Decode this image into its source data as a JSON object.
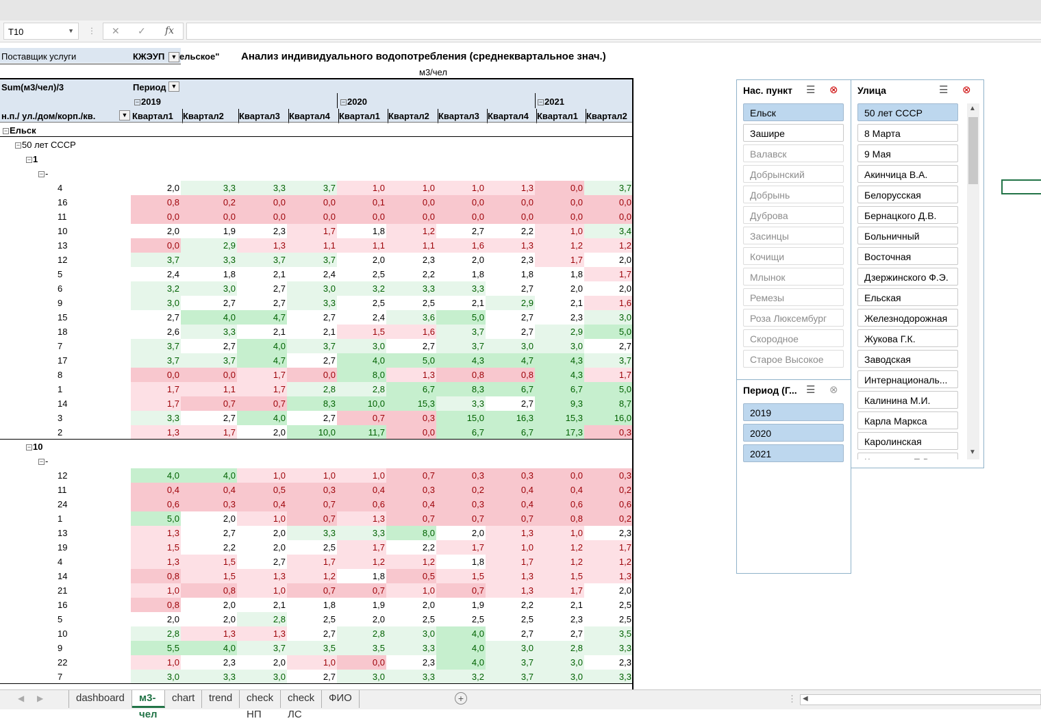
{
  "formula_bar": {
    "name_box": "T10",
    "fx_label": "fx",
    "formula": ""
  },
  "pivot": {
    "filter_label": "Поставщик услуги",
    "filter_value": "КЖЭУП",
    "filter_value_tail": "ельское\"",
    "title": "Анализ индивидуального водопотребления (среднеквартальное знач.)",
    "unit": "м3/чел",
    "measure": "Sum(м3/чел)/3",
    "column_field": "Период",
    "row_field": "н.п./ ул./дом/корп./кв.",
    "years": [
      "2019",
      "2020",
      "2021"
    ],
    "quarters": [
      "Квартал1",
      "Квартал2",
      "Квартал3",
      "Квартал4",
      "Квартал1",
      "Квартал2",
      "Квартал3",
      "Квартал4",
      "Квартал1",
      "Квартал2"
    ],
    "city": "Ельск",
    "street": "50 лет СССР",
    "groups": [
      {
        "house": "1",
        "korp": "-",
        "rows": [
          {
            "apt": "4",
            "values": [
              "2,0",
              "3,3",
              "3,3",
              "3,7",
              "1,0",
              "1,0",
              "1,0",
              "1,3",
              "0,0",
              "3,7"
            ]
          },
          {
            "apt": "16",
            "values": [
              "0,8",
              "0,2",
              "0,0",
              "0,0",
              "0,1",
              "0,0",
              "0,0",
              "0,0",
              "0,0",
              "0,0"
            ]
          },
          {
            "apt": "11",
            "values": [
              "0,0",
              "0,0",
              "0,0",
              "0,0",
              "0,0",
              "0,0",
              "0,0",
              "0,0",
              "0,0",
              "0,0"
            ]
          },
          {
            "apt": "10",
            "values": [
              "2,0",
              "1,9",
              "2,3",
              "1,7",
              "1,8",
              "1,2",
              "2,7",
              "2,2",
              "1,0",
              "3,4"
            ]
          },
          {
            "apt": "13",
            "values": [
              "0,0",
              "2,9",
              "1,3",
              "1,1",
              "1,1",
              "1,1",
              "1,6",
              "1,3",
              "1,2",
              "1,2"
            ]
          },
          {
            "apt": "12",
            "values": [
              "3,7",
              "3,3",
              "3,7",
              "3,7",
              "2,0",
              "2,3",
              "2,0",
              "2,3",
              "1,7",
              "2,0"
            ]
          },
          {
            "apt": "5",
            "values": [
              "2,4",
              "1,8",
              "2,1",
              "2,4",
              "2,5",
              "2,2",
              "1,8",
              "1,8",
              "1,8",
              "1,7"
            ]
          },
          {
            "apt": "6",
            "values": [
              "3,2",
              "3,0",
              "2,7",
              "3,0",
              "3,2",
              "3,3",
              "3,3",
              "2,7",
              "2,0",
              "2,0"
            ]
          },
          {
            "apt": "9",
            "values": [
              "3,0",
              "2,7",
              "2,7",
              "3,3",
              "2,5",
              "2,5",
              "2,1",
              "2,9",
              "2,1",
              "1,6"
            ]
          },
          {
            "apt": "15",
            "values": [
              "2,7",
              "4,0",
              "4,7",
              "2,7",
              "2,4",
              "3,6",
              "5,0",
              "2,7",
              "2,3",
              "3,0"
            ]
          },
          {
            "apt": "18",
            "values": [
              "2,6",
              "3,3",
              "2,1",
              "2,1",
              "1,5",
              "1,6",
              "3,7",
              "2,7",
              "2,9",
              "5,0"
            ]
          },
          {
            "apt": "7",
            "values": [
              "3,7",
              "2,7",
              "4,0",
              "3,7",
              "3,0",
              "2,7",
              "3,7",
              "3,0",
              "3,0",
              "2,7"
            ]
          },
          {
            "apt": "17",
            "values": [
              "3,7",
              "3,7",
              "4,7",
              "2,7",
              "4,0",
              "5,0",
              "4,3",
              "4,7",
              "4,3",
              "3,7"
            ]
          },
          {
            "apt": "8",
            "values": [
              "0,0",
              "0,0",
              "1,7",
              "0,0",
              "8,0",
              "1,3",
              "0,8",
              "0,8",
              "4,3",
              "1,7"
            ]
          },
          {
            "apt": "1",
            "values": [
              "1,7",
              "1,1",
              "1,7",
              "2,8",
              "2,8",
              "6,7",
              "8,3",
              "6,7",
              "6,7",
              "5,0"
            ]
          },
          {
            "apt": "14",
            "values": [
              "1,7",
              "0,7",
              "0,7",
              "8,3",
              "10,0",
              "15,3",
              "3,3",
              "2,7",
              "9,3",
              "8,7"
            ]
          },
          {
            "apt": "3",
            "values": [
              "3,3",
              "2,7",
              "4,0",
              "2,7",
              "0,7",
              "0,3",
              "15,0",
              "16,3",
              "15,3",
              "16,0"
            ]
          },
          {
            "apt": "2",
            "values": [
              "1,3",
              "1,7",
              "2,0",
              "10,0",
              "11,7",
              "0,0",
              "6,7",
              "6,7",
              "17,3",
              "0,3"
            ]
          }
        ]
      },
      {
        "house": "10",
        "korp": "-",
        "rows": [
          {
            "apt": "12",
            "values": [
              "4,0",
              "4,0",
              "1,0",
              "1,0",
              "1,0",
              "0,7",
              "0,3",
              "0,3",
              "0,0",
              "0,3"
            ]
          },
          {
            "apt": "11",
            "values": [
              "0,4",
              "0,4",
              "0,5",
              "0,3",
              "0,4",
              "0,3",
              "0,2",
              "0,4",
              "0,4",
              "0,2"
            ]
          },
          {
            "apt": "24",
            "values": [
              "0,6",
              "0,3",
              "0,4",
              "0,7",
              "0,6",
              "0,4",
              "0,3",
              "0,4",
              "0,6",
              "0,6"
            ]
          },
          {
            "apt": "1",
            "values": [
              "5,0",
              "2,0",
              "1,0",
              "0,7",
              "1,3",
              "0,7",
              "0,7",
              "0,7",
              "0,8",
              "0,2"
            ]
          },
          {
            "apt": "13",
            "values": [
              "1,3",
              "2,7",
              "2,0",
              "3,3",
              "3,3",
              "8,0",
              "2,0",
              "1,3",
              "1,0",
              "2,3"
            ]
          },
          {
            "apt": "19",
            "values": [
              "1,5",
              "2,2",
              "2,0",
              "2,5",
              "1,7",
              "2,2",
              "1,7",
              "1,0",
              "1,2",
              "1,7"
            ]
          },
          {
            "apt": "4",
            "values": [
              "1,3",
              "1,5",
              "2,7",
              "1,7",
              "1,2",
              "1,2",
              "1,8",
              "1,7",
              "1,2",
              "1,2"
            ]
          },
          {
            "apt": "14",
            "values": [
              "0,8",
              "1,5",
              "1,3",
              "1,2",
              "1,8",
              "0,5",
              "1,5",
              "1,3",
              "1,5",
              "1,3"
            ]
          },
          {
            "apt": "21",
            "values": [
              "1,0",
              "0,8",
              "1,0",
              "0,7",
              "0,7",
              "1,0",
              "0,7",
              "1,3",
              "1,7",
              "2,0"
            ]
          },
          {
            "apt": "16",
            "values": [
              "0,8",
              "2,0",
              "2,1",
              "1,8",
              "1,9",
              "2,0",
              "1,9",
              "2,2",
              "2,1",
              "2,5"
            ]
          },
          {
            "apt": "5",
            "values": [
              "2,0",
              "2,0",
              "2,8",
              "2,5",
              "2,0",
              "2,5",
              "2,5",
              "2,5",
              "2,3",
              "2,5"
            ]
          },
          {
            "apt": "10",
            "values": [
              "2,8",
              "1,3",
              "1,3",
              "2,7",
              "2,8",
              "3,0",
              "4,0",
              "2,7",
              "2,7",
              "3,5"
            ]
          },
          {
            "apt": "9",
            "values": [
              "5,5",
              "4,0",
              "3,7",
              "3,5",
              "3,5",
              "3,3",
              "4,0",
              "3,0",
              "2,8",
              "3,3"
            ]
          },
          {
            "apt": "22",
            "values": [
              "1,0",
              "2,3",
              "2,0",
              "1,0",
              "0,0",
              "2,3",
              "4,0",
              "3,7",
              "3,0",
              "2,3"
            ]
          },
          {
            "apt": "7",
            "values": [
              "3,0",
              "3,3",
              "3,0",
              "2,7",
              "3,0",
              "3,3",
              "3,2",
              "3,7",
              "3,0",
              "3,3"
            ]
          }
        ]
      }
    ]
  },
  "slicers": {
    "city": {
      "title": "Нас. пункт",
      "items": [
        {
          "label": "Ельск",
          "state": "selected"
        },
        {
          "label": "Зашире",
          "state": "normal"
        },
        {
          "label": "Валавск",
          "state": "dim"
        },
        {
          "label": "Добрынский",
          "state": "dim"
        },
        {
          "label": "Добрынь",
          "state": "dim"
        },
        {
          "label": "Дуброва",
          "state": "dim"
        },
        {
          "label": "Засинцы",
          "state": "dim"
        },
        {
          "label": "Кочищи",
          "state": "dim"
        },
        {
          "label": "Млынок",
          "state": "dim"
        },
        {
          "label": "Ремезы",
          "state": "dim"
        },
        {
          "label": "Роза Люксембург",
          "state": "dim"
        },
        {
          "label": "Скородное",
          "state": "dim"
        },
        {
          "label": "Старое Высокое",
          "state": "dim"
        }
      ]
    },
    "street": {
      "title": "Улица",
      "items": [
        {
          "label": "50 лет СССР",
          "state": "selected"
        },
        {
          "label": "8 Марта",
          "state": "normal"
        },
        {
          "label": "9 Мая",
          "state": "normal"
        },
        {
          "label": "Акинчица В.А.",
          "state": "normal"
        },
        {
          "label": "Белорусская",
          "state": "normal"
        },
        {
          "label": "Бернацкого Д.В.",
          "state": "normal"
        },
        {
          "label": "Больничный",
          "state": "normal"
        },
        {
          "label": "Восточная",
          "state": "normal"
        },
        {
          "label": "Дзержинского Ф.Э.",
          "state": "normal"
        },
        {
          "label": "Ельская",
          "state": "normal"
        },
        {
          "label": "Железнодорожная",
          "state": "normal"
        },
        {
          "label": "Жукова Г.К.",
          "state": "normal"
        },
        {
          "label": "Заводская",
          "state": "normal"
        },
        {
          "label": "Интернациональ...",
          "state": "normal"
        },
        {
          "label": "Калинина М.И.",
          "state": "normal"
        },
        {
          "label": "Карла Маркса",
          "state": "normal"
        },
        {
          "label": "Каролинская",
          "state": "normal"
        },
        {
          "label": "Корзовича П.В.",
          "state": "normal"
        }
      ]
    },
    "period": {
      "title": "Период (Г...",
      "items": [
        {
          "label": "2019",
          "state": "selected"
        },
        {
          "label": "2020",
          "state": "selected"
        },
        {
          "label": "2021",
          "state": "selected"
        }
      ]
    }
  },
  "sheet_tabs": [
    "dashboard",
    "м3-чел",
    "chart",
    "trend",
    "check НП",
    "check ЛС",
    "ФИО"
  ],
  "active_tab": "м3-чел",
  "colors": {
    "header_band": "#dce6f1",
    "red_fill": "#f8c7ce",
    "red_text": "#9c0006",
    "green_fill": "#c6efce",
    "green_text": "#006100",
    "slicer_selected": "#bdd7ee",
    "excel_green": "#217346"
  }
}
